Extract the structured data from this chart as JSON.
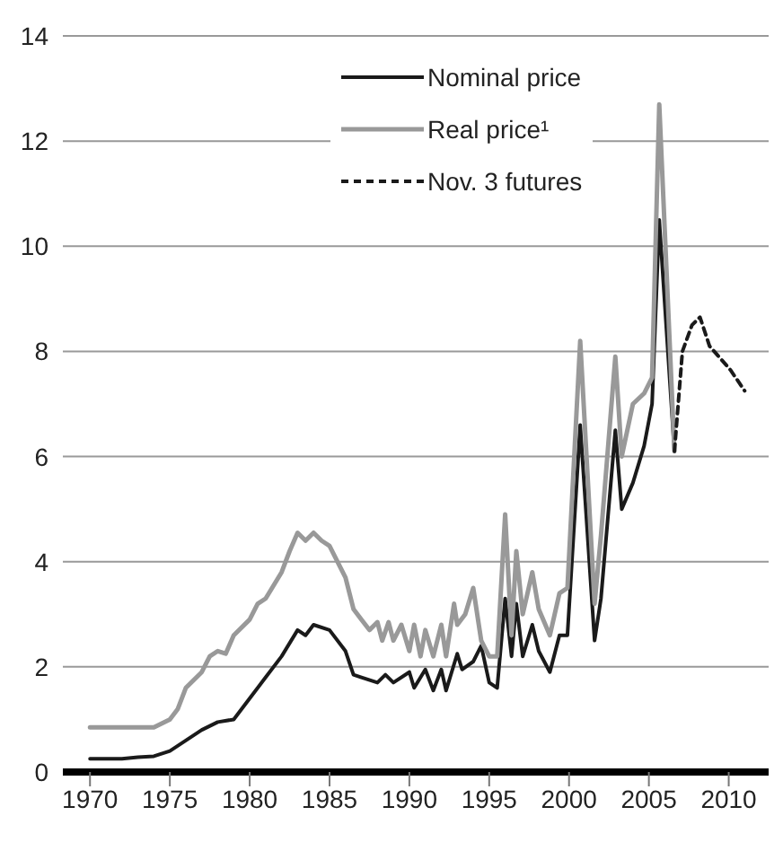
{
  "chart_data": {
    "type": "line",
    "xlim": [
      1968.3,
      2012.5
    ],
    "xticks": [
      1970,
      1975,
      1980,
      1985,
      1990,
      1995,
      2000,
      2005,
      2010
    ],
    "ylim": [
      0,
      14
    ],
    "yticks": [
      0,
      2,
      4,
      6,
      8,
      10,
      12,
      14
    ],
    "grid": "y",
    "legend": "top",
    "marker": "none",
    "series": [
      {
        "name": "Nominal price",
        "color": "#1a1a1a",
        "line_style": "solid",
        "x": [
          1970,
          1972,
          1973,
          1974,
          1975,
          1976,
          1977,
          1978,
          1979,
          1980,
          1981,
          1982,
          1983,
          1983.5,
          1984,
          1985,
          1986,
          1986.5,
          1987,
          1988,
          1988.5,
          1989,
          1990,
          1990.3,
          1991,
          1991.5,
          1992,
          1992.3,
          1993,
          1993.3,
          1994,
          1994.5,
          1995,
          1995.5,
          1996,
          1996.4,
          1996.7,
          1997.1,
          1997.7,
          1998.1,
          1998.8,
          1999.4,
          1999.9,
          2000.7,
          2001.6,
          2002,
          2002.9,
          2003.3,
          2004,
          2004.7,
          2005.2,
          2005.65,
          2006.6
        ],
        "values": [
          0.25,
          0.25,
          0.28,
          0.3,
          0.4,
          0.6,
          0.8,
          0.95,
          1.0,
          1.4,
          1.8,
          2.2,
          2.7,
          2.6,
          2.8,
          2.7,
          2.3,
          1.85,
          1.8,
          1.7,
          1.85,
          1.7,
          1.9,
          1.6,
          1.95,
          1.55,
          1.95,
          1.55,
          2.25,
          1.95,
          2.1,
          2.4,
          1.7,
          1.6,
          3.3,
          2.2,
          3.2,
          2.2,
          2.8,
          2.3,
          1.9,
          2.6,
          2.6,
          6.6,
          2.5,
          3.3,
          6.5,
          5.0,
          5.5,
          6.2,
          7.0,
          10.5,
          6.1
        ]
      },
      {
        "name": "Real price¹",
        "color": "#999999",
        "line_style": "solid",
        "x": [
          1970,
          1972,
          1974,
          1975,
          1975.5,
          1976,
          1977,
          1977.5,
          1978,
          1978.5,
          1979,
          1980,
          1980.5,
          1981,
          1982,
          1982.5,
          1983,
          1983.5,
          1984,
          1984.5,
          1985,
          1986,
          1986.5,
          1987,
          1987.5,
          1988,
          1988.3,
          1988.7,
          1989,
          1989.5,
          1990,
          1990.3,
          1990.7,
          1991,
          1991.5,
          1992,
          1992.3,
          1992.8,
          1993,
          1993.5,
          1994,
          1994.5,
          1995,
          1995.5,
          1996,
          1996.4,
          1996.7,
          1997.1,
          1997.7,
          1998.1,
          1998.8,
          1999.4,
          1999.9,
          2000.7,
          2001.6,
          2002,
          2002.9,
          2003.3,
          2004,
          2004.7,
          2005.2,
          2005.65,
          2006.6
        ],
        "values": [
          0.85,
          0.85,
          0.85,
          1.0,
          1.2,
          1.6,
          1.9,
          2.2,
          2.3,
          2.25,
          2.6,
          2.9,
          3.2,
          3.3,
          3.8,
          4.2,
          4.55,
          4.4,
          4.55,
          4.4,
          4.3,
          3.7,
          3.1,
          2.9,
          2.7,
          2.85,
          2.5,
          2.85,
          2.5,
          2.8,
          2.3,
          2.8,
          2.2,
          2.7,
          2.2,
          2.8,
          2.2,
          3.2,
          2.8,
          3.0,
          3.5,
          2.5,
          2.2,
          2.2,
          4.9,
          2.6,
          4.2,
          3.0,
          3.8,
          3.1,
          2.6,
          3.4,
          3.5,
          8.2,
          3.2,
          4.5,
          7.9,
          6.0,
          7.0,
          7.2,
          7.5,
          12.7,
          6.1
        ]
      },
      {
        "name": "Nov. 3 futures",
        "color": "#1a1a1a",
        "line_style": "dashed",
        "x": [
          2006.6,
          2007.1,
          2007.7,
          2008.2,
          2008.8,
          2010.1,
          2011
        ],
        "values": [
          6.1,
          8.0,
          8.5,
          8.65,
          8.1,
          7.65,
          7.25
        ]
      }
    ]
  }
}
